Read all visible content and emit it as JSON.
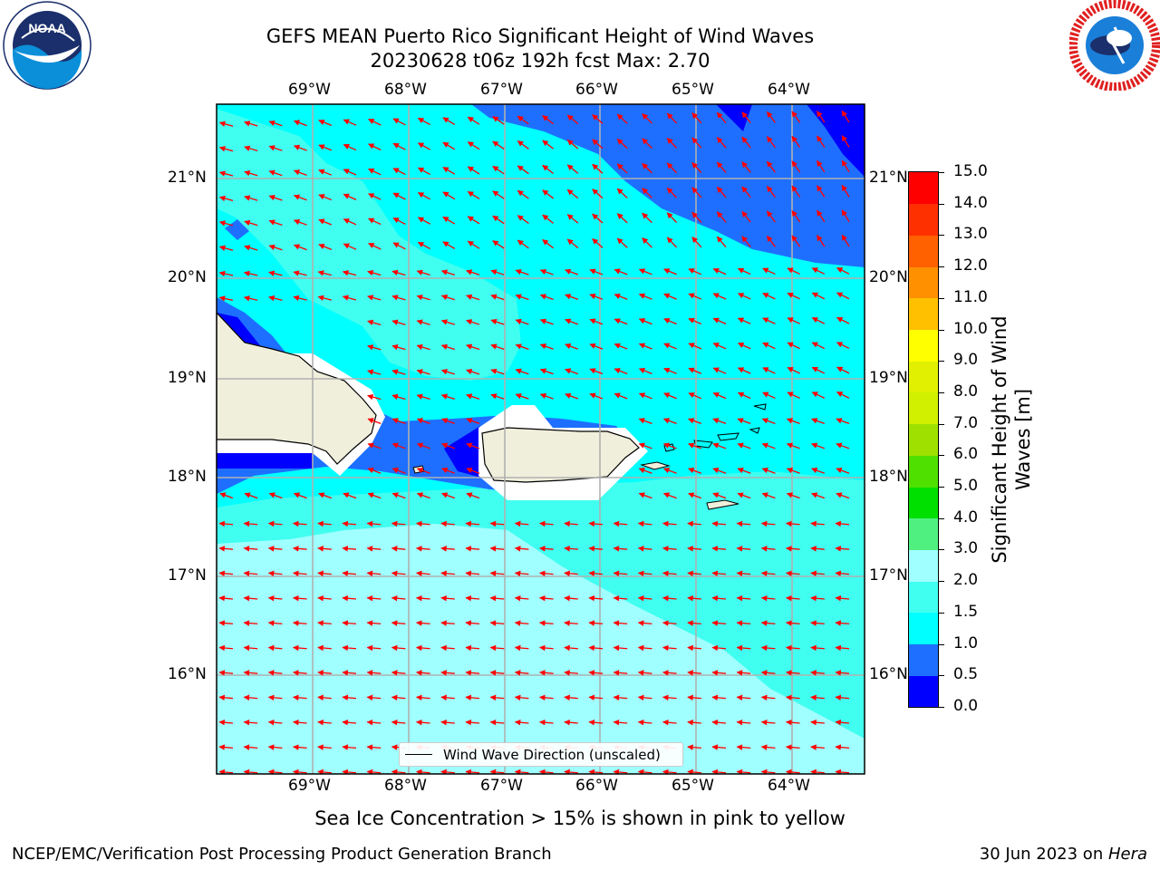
{
  "title": {
    "line1": "GEFS MEAN Puerto Rico Significant Height of Wind Waves",
    "line2": "20230628 t06z 192h fcst   Max: 2.70"
  },
  "logos": {
    "left": "noaa-logo",
    "right": "nws-logo"
  },
  "map": {
    "lon_labels": [
      "69°W",
      "68°W",
      "67°W",
      "66°W",
      "65°W",
      "64°W"
    ],
    "lat_labels": [
      "21°N",
      "20°N",
      "19°N",
      "18°N",
      "17°N",
      "16°N"
    ],
    "legend_label": "Wind Wave Direction (unscaled)"
  },
  "colorbar": {
    "title_line1": "Significant Height of Wind",
    "title_line2": "Waves [m]",
    "ticks": [
      "0.0",
      "0.5",
      "1.0",
      "1.5",
      "2.0",
      "3.0",
      "4.0",
      "5.0",
      "6.0",
      "7.0",
      "8.0",
      "9.0",
      "10.0",
      "11.0",
      "12.0",
      "13.0",
      "14.0",
      "15.0"
    ],
    "colors": [
      "#0000ff",
      "#1e6fff",
      "#00ffff",
      "#40fff0",
      "#a0ffff",
      "#50f080",
      "#00e000",
      "#50e000",
      "#a0e000",
      "#d0f000",
      "#e0f000",
      "#ffff00",
      "#ffc000",
      "#ff9000",
      "#ff6000",
      "#ff3000",
      "#ff0000"
    ]
  },
  "notes": {
    "ice": "Sea Ice Concentration > 15% is shown in pink to yellow"
  },
  "footer": {
    "left": "NCEP/EMC/Verification Post Processing Product Generation Branch",
    "right_prefix": "30 Jun 2023 on ",
    "right_host": "Hera"
  }
}
